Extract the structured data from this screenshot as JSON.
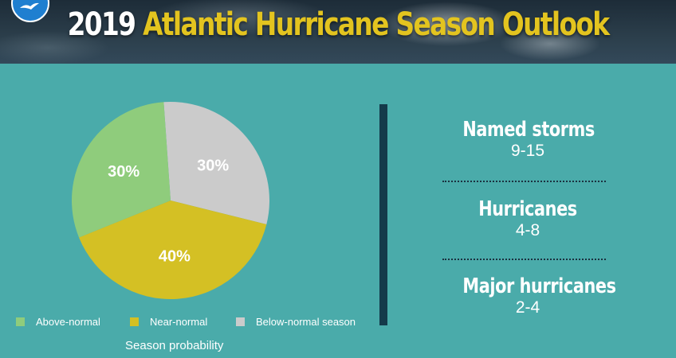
{
  "header": {
    "title_year": "2019",
    "title_rest": "Atlantic Hurricane Season Outlook",
    "logo_icon": "noaa-bird-icon"
  },
  "chart_data": {
    "type": "pie",
    "categories": [
      "Above-normal",
      "Near-normal",
      "Below-normal season"
    ],
    "values": [
      30,
      40,
      30
    ],
    "labels": [
      "30%",
      "40%",
      "30%"
    ],
    "colors": [
      "#8fcc7c",
      "#d4c024",
      "#cbcbcb"
    ],
    "xlabel": "Season probability",
    "legend_position": "bottom"
  },
  "stats": [
    {
      "title": "Named storms",
      "value": "9-15"
    },
    {
      "title": "Hurricanes",
      "value": "4-8"
    },
    {
      "title": "Major hurricanes",
      "value": "2-4"
    }
  ],
  "colors": {
    "background": "#4aabaa",
    "accent": "#e3c41f",
    "divider": "#143a4a"
  }
}
